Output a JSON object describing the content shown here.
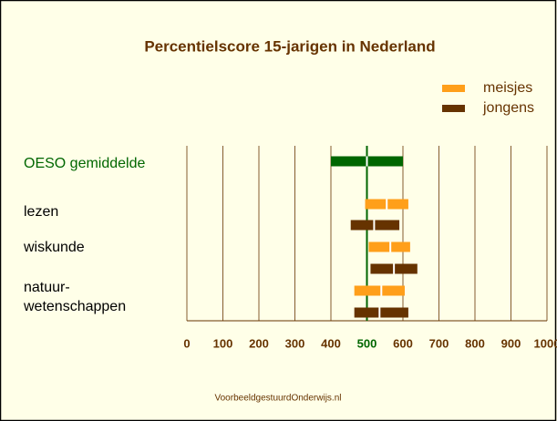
{
  "chart_data": {
    "type": "range",
    "title": "Percentielscore 15-jarigen in Nederland",
    "categories": [
      "lezen",
      "wiskunde",
      "natuur-\nwetenschappen"
    ],
    "reference": {
      "label": "OESO gemiddelde",
      "color": "#006600",
      "low": 400,
      "median": 500,
      "high": 600
    },
    "series": [
      {
        "name": "meisjes",
        "color": "#ff9f1a",
        "low": [
          495,
          505,
          465
        ],
        "median": [
          555,
          565,
          540
        ],
        "high": [
          615,
          620,
          605
        ]
      },
      {
        "name": "jongens",
        "color": "#663300",
        "low": [
          455,
          510,
          465
        ],
        "median": [
          520,
          575,
          535
        ],
        "high": [
          590,
          640,
          615
        ]
      }
    ],
    "xlim": [
      0,
      1000
    ],
    "xticks": [
      0,
      100,
      200,
      300,
      400,
      500,
      600,
      700,
      800,
      900,
      1000
    ],
    "grid": true,
    "legend": "top-right",
    "footer": "VoorbeeldgestuurdOnderwijs.nl"
  }
}
